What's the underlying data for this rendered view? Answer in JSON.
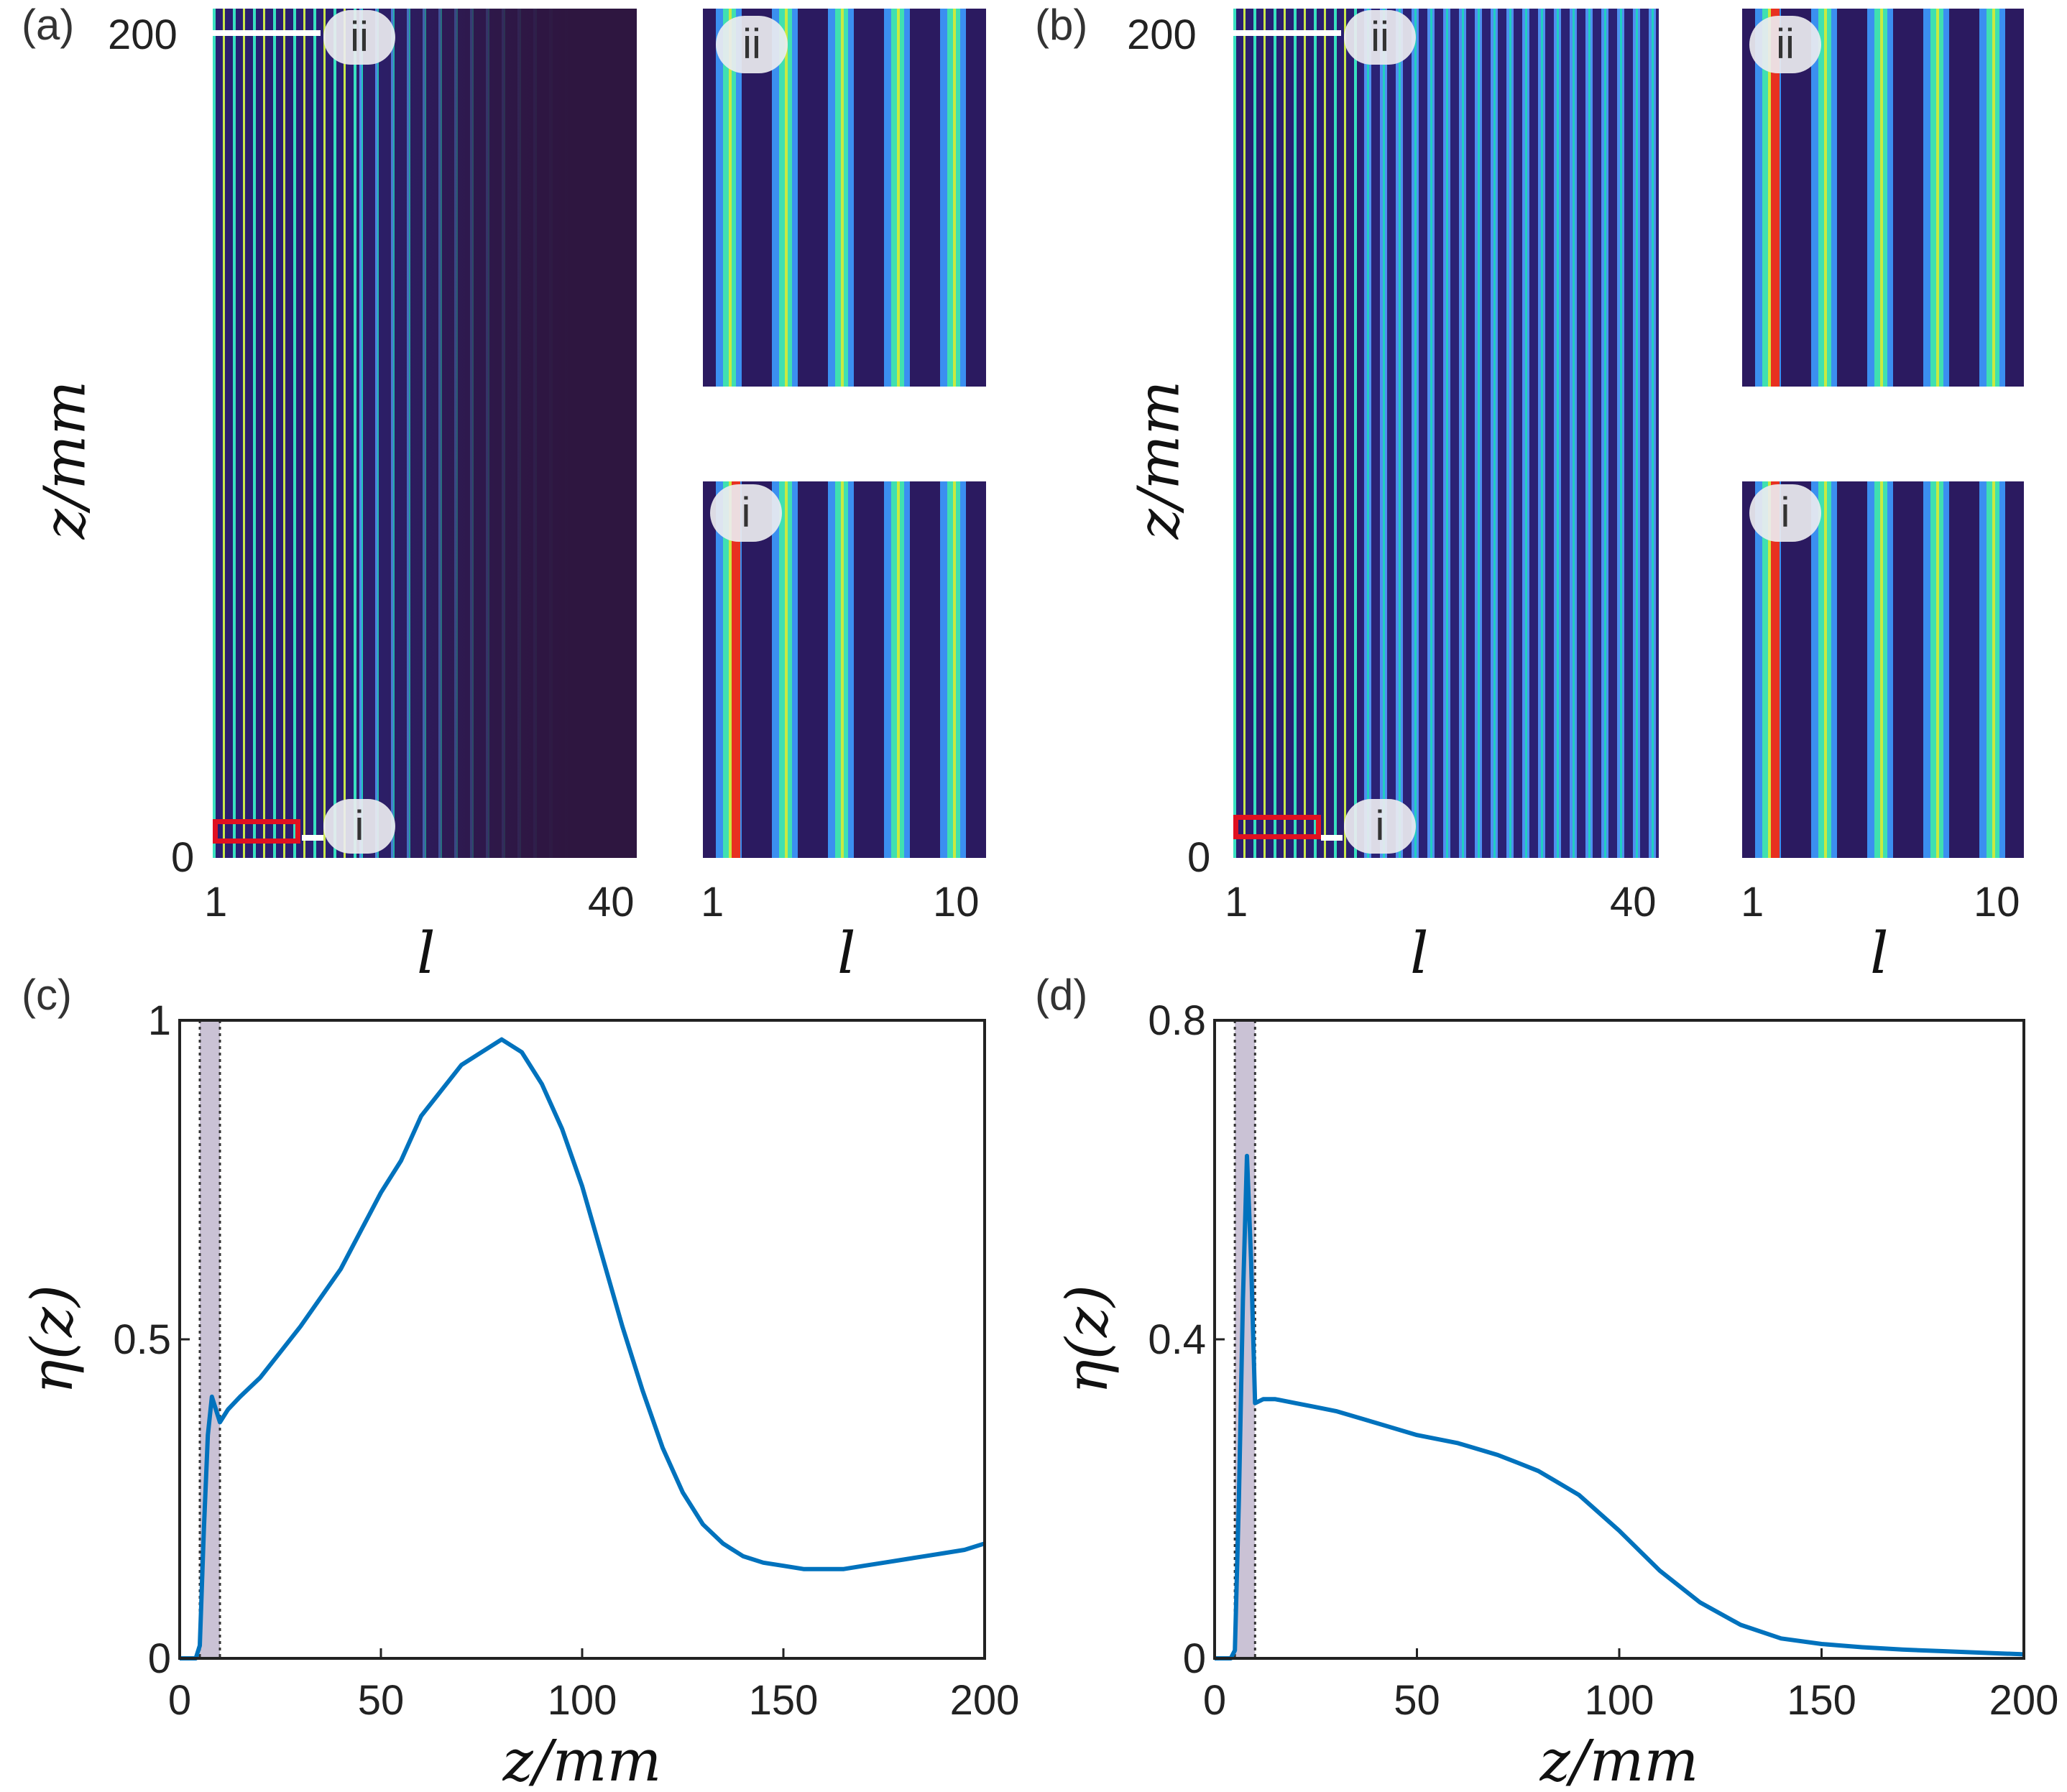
{
  "panels": {
    "a": {
      "label": "(a)",
      "y_ticks": [
        "200",
        "0"
      ],
      "x_ticks": [
        "1",
        "40"
      ],
      "inset_top": {
        "badge": "ii",
        "x_ticks": []
      },
      "inset_bottom": {
        "badge": "i",
        "x_ticks": [
          "1",
          "10"
        ]
      },
      "markers": {
        "top": "ii",
        "bottom": "i"
      },
      "y_title": "z/mm",
      "x_title": "l",
      "inset_x_title": "l"
    },
    "b": {
      "label": "(b)",
      "y_ticks": [
        "200",
        "0"
      ],
      "x_ticks": [
        "1",
        "40"
      ],
      "inset_top": {
        "badge": "ii"
      },
      "inset_bottom": {
        "badge": "i",
        "x_ticks": [
          "1",
          "10"
        ]
      },
      "markers": {
        "top": "ii",
        "bottom": "i"
      },
      "y_title": "z/mm",
      "x_title": "l",
      "inset_x_title": "l"
    },
    "c": {
      "label": "(c)"
    },
    "d": {
      "label": "(d)"
    }
  },
  "colors": {
    "line": "#0072BD",
    "shade": "#9f8fb3",
    "heatmap_low": "#2e1640",
    "heatmap_mid": "#3a6ee0",
    "marker": "#e01020"
  },
  "chart_data": [
    {
      "type": "heatmap",
      "panel": "a",
      "xlabel": "l",
      "ylabel": "z/mm",
      "xlim": [
        1,
        40
      ],
      "ylim": [
        0,
        200
      ],
      "x_ticks": [
        1,
        40
      ],
      "y_ticks": [
        0,
        200
      ]
    },
    {
      "type": "heatmap",
      "panel": "b",
      "xlabel": "l",
      "ylabel": "z/mm",
      "xlim": [
        1,
        40
      ],
      "ylim": [
        0,
        200
      ],
      "x_ticks": [
        1,
        40
      ],
      "y_ticks": [
        0,
        200
      ]
    },
    {
      "type": "line",
      "panel": "c",
      "xlabel": "z/mm",
      "ylabel": "η(z)",
      "xlim": [
        0,
        200
      ],
      "ylim": [
        0,
        1
      ],
      "x_ticks": [
        0,
        50,
        100,
        150,
        200
      ],
      "y_ticks": [
        0,
        0.5,
        1
      ],
      "x_tick_labels": [
        "0",
        "50",
        "100",
        "150",
        "200"
      ],
      "y_tick_labels": [
        "0",
        "0.5",
        "1"
      ],
      "shaded_region": [
        5,
        10
      ],
      "x": [
        0,
        4,
        5,
        6,
        7,
        8,
        9,
        10,
        12,
        15,
        20,
        25,
        30,
        40,
        50,
        55,
        60,
        65,
        70,
        75,
        80,
        85,
        90,
        95,
        100,
        105,
        110,
        115,
        120,
        125,
        130,
        135,
        140,
        145,
        150,
        155,
        160,
        165,
        170,
        175,
        180,
        185,
        190,
        195,
        200
      ],
      "y": [
        0,
        0,
        0.02,
        0.2,
        0.35,
        0.41,
        0.39,
        0.37,
        0.39,
        0.41,
        0.44,
        0.48,
        0.52,
        0.61,
        0.73,
        0.78,
        0.85,
        0.89,
        0.93,
        0.95,
        0.97,
        0.95,
        0.9,
        0.83,
        0.74,
        0.63,
        0.52,
        0.42,
        0.33,
        0.26,
        0.21,
        0.18,
        0.16,
        0.15,
        0.145,
        0.14,
        0.14,
        0.14,
        0.145,
        0.15,
        0.155,
        0.16,
        0.165,
        0.17,
        0.18
      ]
    },
    {
      "type": "line",
      "panel": "d",
      "xlabel": "z/mm",
      "ylabel": "η(z)",
      "xlim": [
        0,
        200
      ],
      "ylim": [
        0,
        0.8
      ],
      "x_ticks": [
        0,
        50,
        100,
        150,
        200
      ],
      "y_ticks": [
        0,
        0.4,
        0.8
      ],
      "x_tick_labels": [
        "0",
        "50",
        "100",
        "150",
        "200"
      ],
      "y_tick_labels": [
        "0",
        "0.4",
        "0.8"
      ],
      "shaded_region": [
        5,
        10
      ],
      "x": [
        0,
        4,
        5,
        6,
        7,
        8,
        9,
        10,
        12,
        15,
        20,
        25,
        30,
        40,
        50,
        60,
        70,
        75,
        80,
        90,
        100,
        110,
        120,
        130,
        140,
        150,
        160,
        170,
        180,
        190,
        200
      ],
      "y": [
        0,
        0,
        0.01,
        0.2,
        0.45,
        0.63,
        0.5,
        0.32,
        0.325,
        0.325,
        0.32,
        0.315,
        0.31,
        0.295,
        0.28,
        0.27,
        0.255,
        0.245,
        0.235,
        0.205,
        0.16,
        0.11,
        0.07,
        0.042,
        0.025,
        0.018,
        0.014,
        0.011,
        0.009,
        0.007,
        0.005
      ]
    }
  ]
}
